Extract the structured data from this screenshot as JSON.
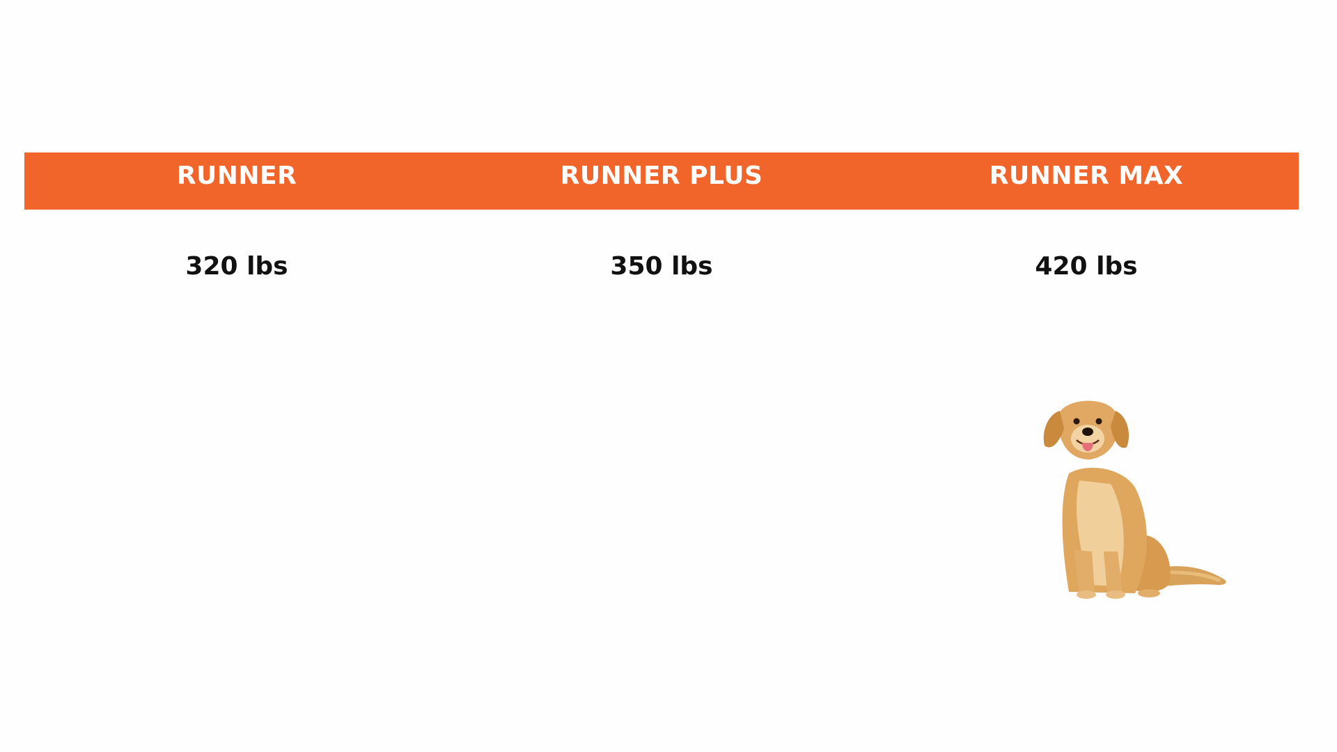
{
  "colors": {
    "header_band": "#f2652a",
    "header_text": "#ffffff",
    "value_text": "#111111",
    "background": "#fefefe"
  },
  "table": {
    "headers": [
      "RUNNER",
      "RUNNER PLUS",
      "RUNNER MAX"
    ],
    "values": [
      "320 lbs",
      "350 lbs",
      "420 lbs"
    ]
  },
  "image": {
    "icon": "golden-retriever-dog-icon"
  }
}
